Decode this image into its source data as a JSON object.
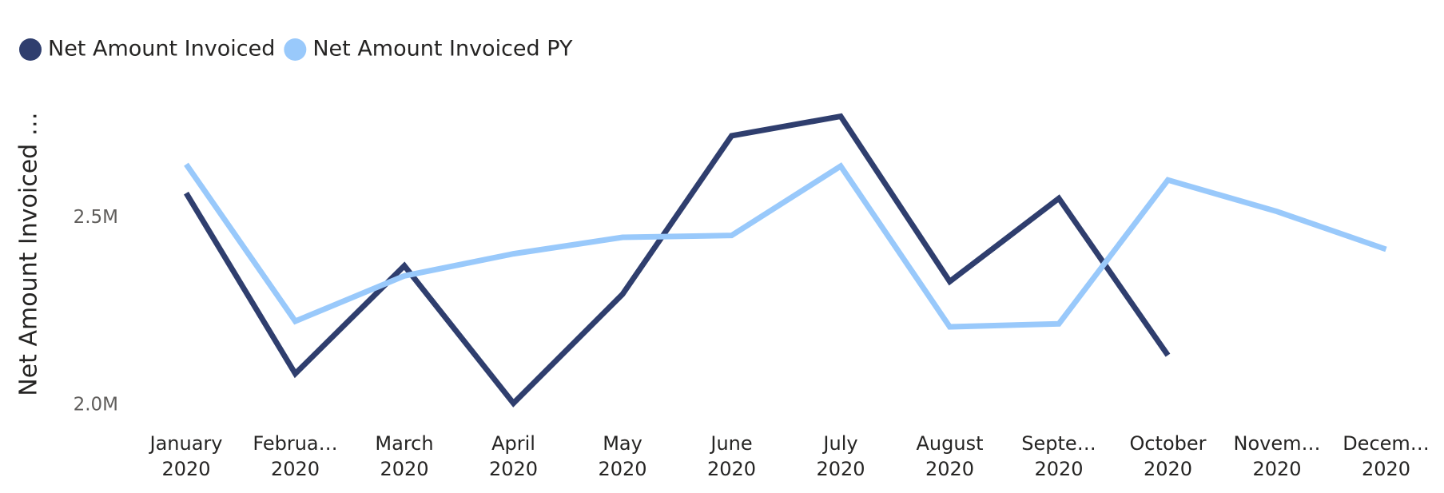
{
  "chart_data": {
    "type": "line",
    "y_label": "Net Amount Invoiced …",
    "categories": [
      [
        "January",
        "2020"
      ],
      [
        "Februa…",
        "2020"
      ],
      [
        "March",
        "2020"
      ],
      [
        "April",
        "2020"
      ],
      [
        "May",
        "2020"
      ],
      [
        "June",
        "2020"
      ],
      [
        "July",
        "2020"
      ],
      [
        "August",
        "2020"
      ],
      [
        "Septe…",
        "2020"
      ],
      [
        "October",
        "2020"
      ],
      [
        "Novem…",
        "2020"
      ],
      [
        "Decem…",
        "2020"
      ]
    ],
    "series": [
      {
        "name": "Net Amount Invoiced",
        "color": "#2f3e6e",
        "values": [
          2566000,
          2084000,
          2372000,
          2005000,
          2296000,
          2719000,
          2771000,
          2330000,
          2552000,
          2133000,
          null,
          null
        ]
      },
      {
        "name": "Net Amount Invoiced PY",
        "color": "#99c9fb",
        "values": [
          2643000,
          2224000,
          2345000,
          2404000,
          2448000,
          2453000,
          2638000,
          2209000,
          2217000,
          2601000,
          2517000,
          2416000
        ]
      }
    ],
    "ylim": [
      2000000,
      2800000
    ],
    "yticks": [
      {
        "value": 2000000,
        "label": "2.0M"
      },
      {
        "value": 2500000,
        "label": "2.5M"
      }
    ],
    "legend": "top-left",
    "grid": false
  }
}
